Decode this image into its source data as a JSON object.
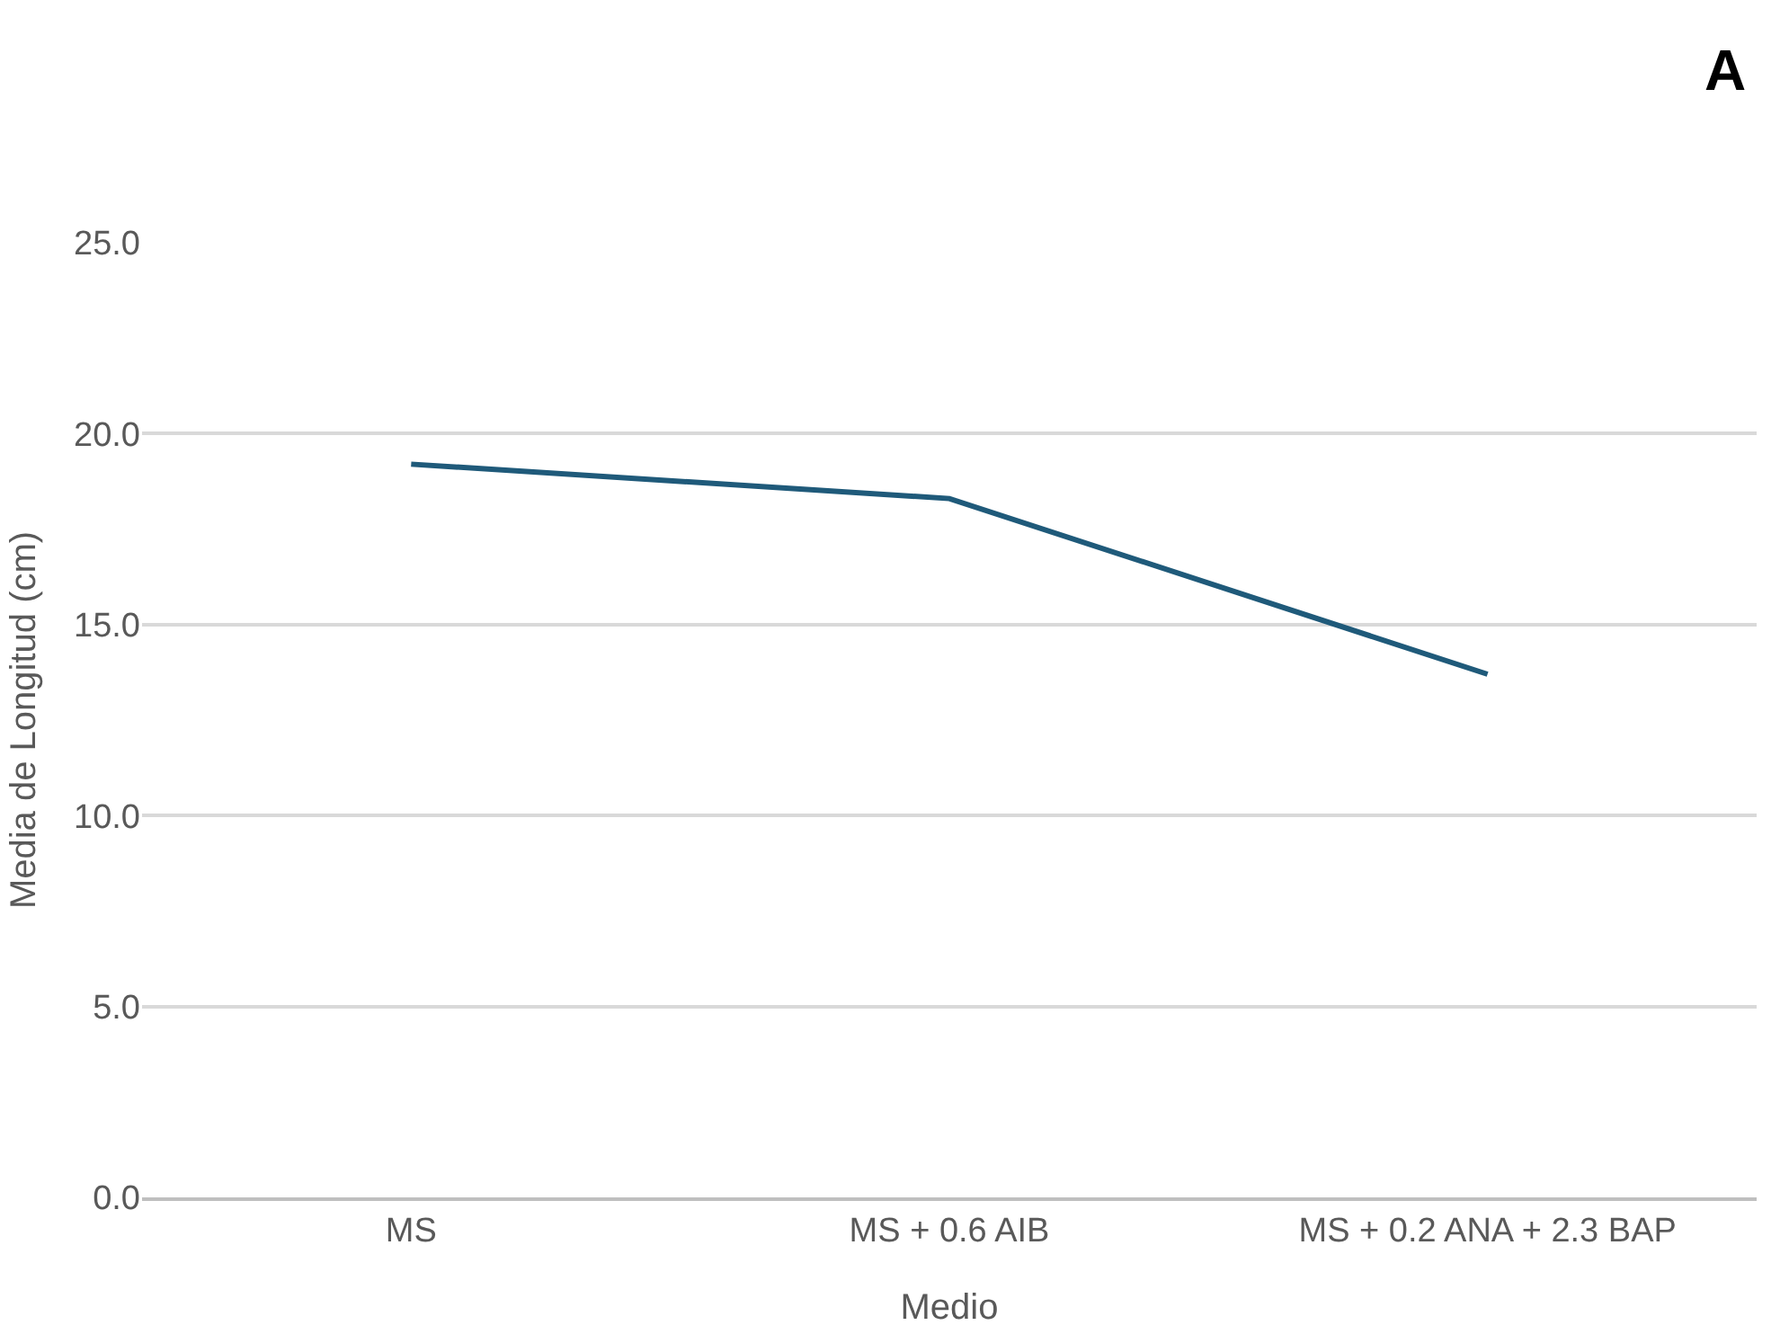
{
  "chart_data": {
    "type": "line",
    "xlabel": "Medio",
    "ylabel": "Media de Longitud (cm)",
    "annotations": [
      "A"
    ],
    "categories": [
      "MS",
      "MS + 0.6 AIB",
      "MS + 0.2 ANA + 2.3 BAP"
    ],
    "series": [
      {
        "color": "#1f5a7a",
        "values": [
          19.2,
          18.3,
          13.7
        ]
      }
    ],
    "ylim": [
      0,
      25
    ],
    "yticks": [
      {
        "value": 0,
        "label": "0.0"
      },
      {
        "value": 5,
        "label": "5.0"
      },
      {
        "value": 10,
        "label": "10.0"
      },
      {
        "value": 15,
        "label": "15.0"
      },
      {
        "value": 20,
        "label": "20.0"
      },
      {
        "value": 25,
        "label": "25.0"
      }
    ],
    "grid": "y",
    "marker": "none",
    "line_style": "solid"
  }
}
